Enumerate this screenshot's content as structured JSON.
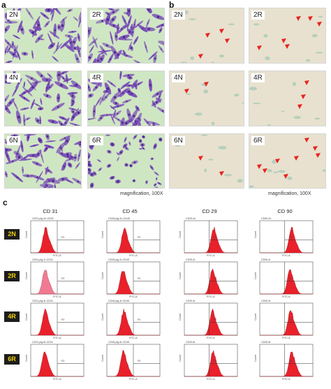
{
  "panel_a": {
    "letter": "a",
    "tiles": [
      {
        "label": "2N"
      },
      {
        "label": "2R"
      },
      {
        "label": "4N"
      },
      {
        "label": "4R"
      },
      {
        "label": "6N"
      },
      {
        "label": "6R"
      }
    ],
    "caption": "magnification, 100X",
    "colors": {
      "background": "#cfe6c3",
      "cell": "#7a4cb8",
      "cell_dark": "#4d2a8a"
    }
  },
  "panel_b": {
    "letter": "b",
    "tiles": [
      {
        "label": "2N"
      },
      {
        "label": "2R"
      },
      {
        "label": "4N"
      },
      {
        "label": "4R"
      },
      {
        "label": "6N"
      },
      {
        "label": "6R"
      }
    ],
    "caption": "magnification, 100X",
    "colors": {
      "background": "#e8e1cf",
      "arrow": "#e8231f",
      "stain": "#9fc9b4"
    }
  },
  "panel_c": {
    "letter": "c",
    "columns": [
      "CD 31",
      "CD 45",
      "CD 29",
      "CD 90"
    ],
    "rows": [
      "2N",
      "2R",
      "4R",
      "6R"
    ],
    "colors": {
      "fill": "#e8212b",
      "fill_light": "#f07a92",
      "badge_bg": "#1d1d1d",
      "badge_text": "#f2d000"
    },
    "plot_text": {
      "y_label": "Count",
      "x_label": "FITC-A",
      "gate": "P2",
      "headers": [
        [
          "CD31-pig-2n-CD31",
          "CD45-pig-2n-CD45",
          "CD29-2n",
          "CD90-2n"
        ],
        [
          "CD31-pig-2r-CD31",
          "CD45-pig-2r-CD45",
          "CD29-2r",
          "CD90-2r"
        ],
        [
          "CD31-pig-4r-CD31",
          "CD45-pig-4r-CD45",
          "CD29-4r",
          "CD90-4r"
        ],
        [
          "CD31-pig-6r-CD31",
          "CD45-pig-6r-CD45",
          "CD29-6r",
          "CD90-6r"
        ]
      ]
    }
  }
}
